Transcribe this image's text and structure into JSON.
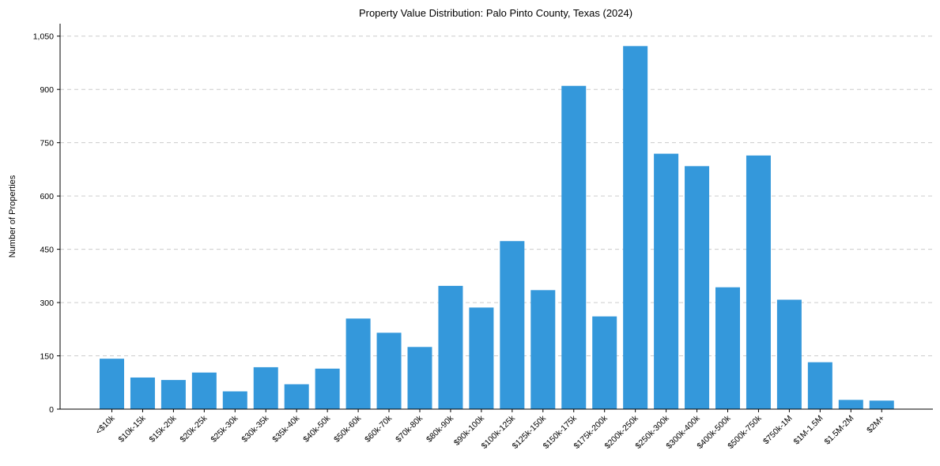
{
  "chart_data": {
    "type": "bar",
    "title": "Property Value Distribution: Palo Pinto County, Texas (2024)",
    "xlabel": "",
    "ylabel": "Number of Properties",
    "ylim": [
      0,
      1085
    ],
    "yticks": [
      0,
      150,
      300,
      450,
      600,
      750,
      900,
      1050
    ],
    "ytick_labels": [
      "0",
      "150",
      "300",
      "450",
      "600",
      "750",
      "900",
      "1,050"
    ],
    "grid": "horizontal-dashed",
    "bar_color": "#3498db",
    "categories": [
      "<$10k",
      "$10k-15k",
      "$15k-20k",
      "$20k-25k",
      "$25k-30k",
      "$30k-35k",
      "$35k-40k",
      "$40k-50k",
      "$50k-60k",
      "$60k-70k",
      "$70k-80k",
      "$80k-90k",
      "$90k-100k",
      "$100k-125k",
      "$125k-150k",
      "$150k-175k",
      "$175k-200k",
      "$200k-250k",
      "$250k-300k",
      "$300k-400k",
      "$400k-500k",
      "$500k-750k",
      "$750k-1M",
      "$1M-1.5M",
      "$1.5M-2M",
      "$2M+"
    ],
    "values": [
      142,
      89,
      82,
      103,
      50,
      118,
      70,
      114,
      255,
      215,
      175,
      347,
      286,
      473,
      335,
      910,
      261,
      1022,
      719,
      684,
      343,
      714,
      308,
      132,
      26,
      24
    ]
  }
}
